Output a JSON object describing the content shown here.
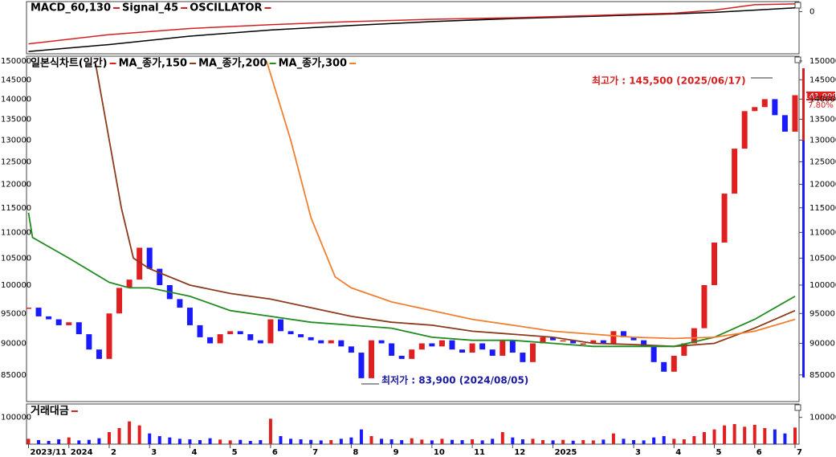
{
  "chart_data": [
    {
      "type": "line",
      "x": [
        -1,
        1,
        3,
        5,
        7,
        9,
        11,
        13,
        15,
        16,
        17,
        18
      ],
      "series": [
        {
          "name": "MACD_60,130",
          "color": "#000000",
          "values": [
            -5200,
            -4300,
            -3200,
            -2400,
            -1800,
            -1300,
            -900,
            -600,
            -300,
            -100,
            200,
            500
          ]
        },
        {
          "name": "Signal_45",
          "color": "#d42020",
          "values": [
            -4200,
            -3000,
            -2200,
            -1700,
            -1300,
            -1000,
            -800,
            -500,
            -200,
            200,
            900,
            1000
          ]
        }
      ],
      "oscillator_label": "OSCILLATOR",
      "oscillator_color": "#d42020",
      "ylim": [
        -5500,
        1200
      ],
      "yticks": [
        0
      ]
    },
    {
      "type": "candlestick",
      "title": "일본식차트(일간)",
      "up_color": "#e02020",
      "down_color": "#1a1aff",
      "log_scale": true,
      "x": [
        -1,
        -0.75,
        -0.5,
        -0.25,
        0,
        0.25,
        0.5,
        0.75,
        1,
        1.25,
        1.5,
        1.75,
        2,
        2.25,
        2.5,
        2.75,
        3,
        3.25,
        3.5,
        3.75,
        4,
        4.25,
        4.5,
        4.75,
        5,
        5.25,
        5.5,
        5.75,
        6,
        6.25,
        6.5,
        6.75,
        7,
        7.25,
        7.5,
        7.75,
        8,
        8.25,
        8.5,
        8.75,
        9,
        9.25,
        9.5,
        9.75,
        10,
        10.25,
        10.5,
        10.75,
        11,
        11.25,
        11.5,
        11.75,
        12,
        12.25,
        12.5,
        12.75,
        13,
        13.25,
        13.5,
        13.75,
        14,
        14.25,
        14.5,
        14.75,
        15,
        15.25,
        15.5,
        15.75,
        16,
        16.25,
        16.5,
        16.75,
        17,
        17.25,
        17.5,
        17.75,
        18
      ],
      "values": [
        96000,
        94500,
        94000,
        93000,
        93500,
        91500,
        89000,
        87500,
        95000,
        99500,
        101000,
        107000,
        103000,
        100000,
        97500,
        96000,
        93000,
        91000,
        90000,
        91500,
        92000,
        91500,
        90500,
        90000,
        94000,
        92000,
        91500,
        91000,
        90500,
        90000,
        90500,
        89500,
        88500,
        84500,
        90500,
        90000,
        88000,
        87500,
        89000,
        90000,
        89500,
        90500,
        89000,
        88500,
        90000,
        89000,
        88000,
        90500,
        88500,
        87000,
        90000,
        91000,
        90500,
        90500,
        90000,
        90000,
        90500,
        90000,
        92000,
        91000,
        90500,
        89500,
        87000,
        85500,
        88000,
        90000,
        92500,
        100000,
        108000,
        118000,
        128000,
        137000,
        138000,
        140000,
        136000,
        132000,
        141000
      ],
      "ma_series": [
        {
          "name": "MA_종가,150",
          "color": "#8b3a1a",
          "x": [
            0.65,
            1,
            1.3,
            1.6,
            2,
            3,
            4,
            5,
            6,
            7,
            8,
            9,
            10,
            11,
            12,
            13,
            14,
            15,
            16,
            17,
            18
          ],
          "values": [
            150000,
            130000,
            115000,
            105000,
            103000,
            100000,
            98500,
            97500,
            96000,
            94500,
            93500,
            93000,
            92000,
            91500,
            91000,
            90000,
            89800,
            89500,
            90000,
            92500,
            95500
          ]
        },
        {
          "name": "MA_종가,200",
          "color": "#228b22",
          "x": [
            -1,
            -0.9,
            0,
            1,
            1.5,
            2,
            3,
            4,
            5,
            6,
            7,
            8,
            9,
            10,
            11,
            12,
            13,
            14,
            15,
            16,
            17,
            18
          ],
          "values": [
            114000,
            109000,
            105000,
            100500,
            99500,
            99500,
            98000,
            95500,
            94500,
            93500,
            93000,
            92500,
            91000,
            90500,
            90500,
            90000,
            89500,
            89500,
            89500,
            91000,
            94000,
            98000
          ]
        },
        {
          "name": "MA_종가,300",
          "color": "#f08030",
          "x": [
            4.9,
            5.5,
            6,
            6.6,
            7,
            8,
            9,
            10,
            11,
            12,
            13,
            14,
            15,
            16,
            17,
            18
          ],
          "values": [
            150000,
            130000,
            113000,
            101500,
            99500,
            97000,
            95500,
            94000,
            93000,
            92000,
            91500,
            91000,
            90800,
            91000,
            92000,
            94000
          ]
        }
      ],
      "ylim": [
        81000,
        151300
      ],
      "yticks": [
        85000,
        90000,
        95000,
        100000,
        105000,
        110000,
        115000,
        120000,
        125000,
        130000,
        135000,
        140000,
        145000,
        150000
      ],
      "xlim": [
        -1.05,
        18.1
      ],
      "xticks": [
        {
          "value": -1,
          "label": "2023/11"
        },
        {
          "value": 0,
          "label": "2024"
        },
        {
          "value": 1,
          "label": "2"
        },
        {
          "value": 2,
          "label": "3"
        },
        {
          "value": 3,
          "label": "4"
        },
        {
          "value": 4,
          "label": "5"
        },
        {
          "value": 5,
          "label": "6"
        },
        {
          "value": 6,
          "label": "7"
        },
        {
          "value": 7,
          "label": "8"
        },
        {
          "value": 8,
          "label": "9"
        },
        {
          "value": 9,
          "label": "10"
        },
        {
          "value": 10,
          "label": "11"
        },
        {
          "value": 11,
          "label": "12"
        },
        {
          "value": 12,
          "label": "2025"
        },
        {
          "value": 14,
          "label": "3"
        },
        {
          "value": 15,
          "label": "4"
        },
        {
          "value": 16,
          "label": "5"
        },
        {
          "value": 17,
          "label": "6"
        },
        {
          "value": 18,
          "label": "7"
        }
      ],
      "high_annotation": "최고가 : 145,500 (2025/06/17)",
      "low_annotation": "최저가 : 83,900 (2024/08/05)",
      "last_price_label": "141,000",
      "change_label": "7.80%"
    },
    {
      "type": "bar",
      "title": "거래대금",
      "values": [
        20000,
        15000,
        12000,
        18000,
        25000,
        14000,
        16000,
        22000,
        45000,
        60000,
        85000,
        70000,
        40000,
        30000,
        25000,
        20000,
        18000,
        15000,
        22000,
        17000,
        14000,
        16000,
        12000,
        15000,
        95000,
        30000,
        20000,
        18000,
        16000,
        14000,
        15000,
        20000,
        25000,
        55000,
        30000,
        20000,
        18000,
        15000,
        22000,
        17000,
        14000,
        20000,
        16000,
        15000,
        18000,
        14000,
        20000,
        45000,
        25000,
        18000,
        20000,
        15000,
        14000,
        16000,
        13000,
        15000,
        14000,
        17000,
        40000,
        20000,
        15000,
        14000,
        25000,
        30000,
        20000,
        18000,
        30000,
        45000,
        55000,
        70000,
        75000,
        65000,
        72000,
        60000,
        55000,
        40000,
        62000
      ],
      "ylim": [
        0,
        150000
      ],
      "yticks": [
        100000
      ]
    }
  ]
}
